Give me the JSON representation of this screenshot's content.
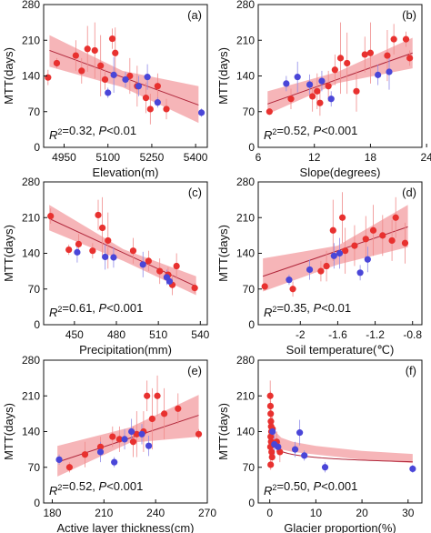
{
  "colors": {
    "red_points": "#e8312f",
    "blue_points": "#4a46d8",
    "band_fill": "#f4a3a6",
    "fit_line": "#b0263a",
    "err_red": "#f08a8a",
    "err_blue": "#8f8ae8"
  },
  "chart_data": [
    {
      "type": "scatter",
      "panel_label": "(a)",
      "xlabel": "Elevation(m)",
      "ylabel": "MTT(days)",
      "xlim": [
        4880,
        5440
      ],
      "ylim": [
        0,
        280
      ],
      "xticks": [
        4950,
        5100,
        5250,
        5400
      ],
      "yticks": [
        0,
        70,
        140,
        210,
        280
      ],
      "stat_text": "R²=0.32, P<0.01",
      "stat_r2": "0.32",
      "stat_p": "0.01",
      "stat_op": "<",
      "fit": {
        "type": "linear",
        "x": [
          4900,
          5410
        ],
        "y": [
          190,
          83
        ]
      },
      "band": {
        "x": [
          4900,
          5150,
          5410
        ],
        "upper": [
          220,
          150,
          120
        ],
        "lower": [
          158,
          118,
          48
        ]
      },
      "series": [
        {
          "color": "red",
          "points": [
            [
              4895,
              137
            ],
            [
              4925,
              165
            ],
            [
              4990,
              180
            ],
            [
              5010,
              150
            ],
            [
              5030,
              193
            ],
            [
              5055,
              190
            ],
            [
              5075,
              160
            ],
            [
              5090,
              133
            ],
            [
              5115,
              213
            ],
            [
              5125,
              185
            ],
            [
              5175,
              140
            ],
            [
              5200,
              120
            ],
            [
              5230,
              97
            ],
            [
              5245,
              75
            ],
            [
              5270,
              120
            ],
            [
              5300,
              75
            ]
          ],
          "err": [
            15,
            10,
            30,
            25,
            45,
            55,
            60,
            20,
            20,
            50,
            35,
            40,
            30,
            30,
            25,
            20
          ]
        },
        {
          "color": "blue",
          "points": [
            [
              5100,
              107
            ],
            [
              5120,
              142
            ],
            [
              5160,
              133
            ],
            [
              5205,
              120
            ],
            [
              5235,
              138
            ],
            [
              5270,
              88
            ],
            [
              5420,
              68
            ]
          ],
          "err": [
            10,
            35,
            15,
            20,
            25,
            10,
            8
          ]
        }
      ]
    },
    {
      "type": "scatter",
      "panel_label": "(b)",
      "xlabel": "Slope(degrees)",
      "ylabel": "MTT(days)",
      "xlim": [
        6,
        23.5
      ],
      "ylim": [
        0,
        280
      ],
      "xticks": [
        6,
        12,
        18,
        24
      ],
      "yticks": [
        0,
        70,
        140,
        210,
        280
      ],
      "stat_text": "R²=0.52, P<0.001",
      "stat_r2": "0.52",
      "stat_p": "0.001",
      "stat_op": "<",
      "fit": {
        "type": "linear",
        "x": [
          7,
          22.5
        ],
        "y": [
          85,
          185
        ]
      },
      "band": {
        "x": [
          7,
          14.5,
          22.5
        ],
        "upper": [
          110,
          148,
          215
        ],
        "lower": [
          65,
          126,
          155
        ]
      },
      "series": [
        {
          "color": "red",
          "points": [
            [
              7.2,
              70
            ],
            [
              9.5,
              95
            ],
            [
              11.8,
              100
            ],
            [
              12.3,
              110
            ],
            [
              12.6,
              87
            ],
            [
              13.5,
              120
            ],
            [
              14.2,
              152
            ],
            [
              14.8,
              175
            ],
            [
              15.5,
              165
            ],
            [
              16.5,
              110
            ],
            [
              17.4,
              182
            ],
            [
              18,
              185
            ],
            [
              19.8,
              180
            ],
            [
              20.5,
              212
            ],
            [
              21.8,
              212
            ],
            [
              22.2,
              175
            ]
          ],
          "err": [
            5,
            20,
            30,
            35,
            25,
            30,
            30,
            70,
            60,
            40,
            35,
            60,
            50,
            30,
            15,
            15
          ]
        },
        {
          "color": "blue",
          "points": [
            [
              9,
              125
            ],
            [
              10.2,
              138
            ],
            [
              11.5,
              123
            ],
            [
              12.8,
              130
            ],
            [
              13.8,
              95
            ],
            [
              18.8,
              142
            ],
            [
              20,
              148
            ]
          ],
          "err": [
            15,
            30,
            20,
            20,
            15,
            20,
            35
          ]
        }
      ]
    },
    {
      "type": "scatter",
      "panel_label": "(c)",
      "xlabel": "Precipitation(mm)",
      "ylabel": "MTT(days)",
      "xlim": [
        428,
        545
      ],
      "ylim": [
        0,
        280
      ],
      "xticks": [
        450,
        480,
        510,
        540
      ],
      "yticks": [
        0,
        70,
        140,
        210,
        280
      ],
      "stat_text": "R²=0.61, P<0.001",
      "stat_r2": "0.61",
      "stat_p": "0.001",
      "stat_op": "<",
      "fit": {
        "type": "linear",
        "x": [
          432,
          537
        ],
        "y": [
          208,
          75
        ]
      },
      "band": {
        "x": [
          432,
          485,
          537
        ],
        "upper": [
          235,
          148,
          95
        ],
        "lower": [
          185,
          125,
          58
        ]
      },
      "series": [
        {
          "color": "red",
          "points": [
            [
              433,
              213
            ],
            [
              446,
              147
            ],
            [
              453,
              158
            ],
            [
              463,
              145
            ],
            [
              467,
              215
            ],
            [
              470,
              190
            ],
            [
              474,
              165
            ],
            [
              492,
              145
            ],
            [
              503,
              125
            ],
            [
              511,
              105
            ],
            [
              517,
              98
            ],
            [
              523,
              115
            ],
            [
              520,
              78
            ],
            [
              536,
              72
            ]
          ],
          "err": [
            15,
            10,
            20,
            15,
            30,
            60,
            55,
            25,
            20,
            25,
            15,
            25,
            20,
            10
          ]
        },
        {
          "color": "blue",
          "points": [
            [
              452,
              142
            ],
            [
              472,
              133
            ],
            [
              478,
              132
            ],
            [
              499,
              118
            ],
            [
              516,
              93
            ],
            [
              518,
              85
            ]
          ],
          "err": [
            20,
            25,
            20,
            25,
            15,
            10
          ]
        }
      ]
    },
    {
      "type": "scatter",
      "panel_label": "(d)",
      "xlabel": "Soil temperature(℃)",
      "ylabel": "MTT(days)",
      "xlim": [
        -2.45,
        -0.7
      ],
      "ylim": [
        0,
        280
      ],
      "xticks": [
        -2.0,
        -1.6,
        -1.2,
        -0.8
      ],
      "yticks": [
        0,
        70,
        140,
        210,
        280
      ],
      "stat_text": "R²=0.35, P<0.01",
      "stat_r2": "0.35",
      "stat_p": "0.01",
      "stat_op": "<",
      "fit": {
        "type": "linear",
        "x": [
          -2.4,
          -0.85
        ],
        "y": [
          95,
          192
        ]
      },
      "band": {
        "x": [
          -2.4,
          -1.6,
          -0.85
        ],
        "upper": [
          130,
          155,
          235
        ],
        "lower": [
          65,
          118,
          152
        ]
      },
      "series": [
        {
          "color": "red",
          "points": [
            [
              -2.38,
              75
            ],
            [
              -2.08,
              70
            ],
            [
              -1.78,
              105
            ],
            [
              -1.72,
              115
            ],
            [
              -1.65,
              185
            ],
            [
              -1.55,
              210
            ],
            [
              -1.52,
              145
            ],
            [
              -1.42,
              155
            ],
            [
              -1.3,
              168
            ],
            [
              -1.22,
              185
            ],
            [
              -1.12,
              175
            ],
            [
              -1.02,
              165
            ],
            [
              -0.98,
              210
            ],
            [
              -0.88,
              160
            ]
          ],
          "err": [
            8,
            15,
            20,
            30,
            60,
            50,
            45,
            40,
            45,
            50,
            40,
            40,
            40,
            40
          ]
        },
        {
          "color": "blue",
          "points": [
            [
              -2.12,
              88
            ],
            [
              -1.9,
              108
            ],
            [
              -1.64,
              135
            ],
            [
              -1.58,
              140
            ],
            [
              -1.36,
              102
            ],
            [
              -1.28,
              128
            ]
          ],
          "err": [
            10,
            20,
            25,
            30,
            15,
            25
          ]
        }
      ]
    },
    {
      "type": "scatter",
      "panel_label": "(e)",
      "xlabel": "Active layer thickness(cm)",
      "ylabel": "MTT(days)",
      "xlim": [
        175,
        270
      ],
      "ylim": [
        0,
        280
      ],
      "xticks": [
        180,
        210,
        240,
        270
      ],
      "yticks": [
        0,
        70,
        140,
        210,
        280
      ],
      "stat_text": "R²=0.52, P<0.001",
      "stat_r2": "0.52",
      "stat_p": "0.001",
      "stat_op": "<",
      "fit": {
        "type": "linear",
        "x": [
          183,
          265
        ],
        "y": [
          80,
          172
        ]
      },
      "band": {
        "x": [
          183,
          225,
          265
        ],
        "upper": [
          112,
          148,
          212
        ],
        "lower": [
          52,
          118,
          130
        ]
      },
      "series": [
        {
          "color": "red",
          "points": [
            [
              190,
              70
            ],
            [
              199,
              95
            ],
            [
              208,
              110
            ],
            [
              215,
              130
            ],
            [
              219,
              125
            ],
            [
              227,
              120
            ],
            [
              229,
              135
            ],
            [
              233,
              140
            ],
            [
              235,
              210
            ],
            [
              238,
              165
            ],
            [
              241,
              210
            ],
            [
              245,
              175
            ],
            [
              253,
              185
            ],
            [
              265,
              135
            ]
          ],
          "err": [
            10,
            25,
            20,
            20,
            25,
            30,
            45,
            40,
            30,
            60,
            40,
            50,
            30,
            10
          ]
        },
        {
          "color": "blue",
          "points": [
            [
              184,
              85
            ],
            [
              208,
              100
            ],
            [
              216,
              80
            ],
            [
              222,
              125
            ],
            [
              226,
              140
            ],
            [
              232,
              135
            ],
            [
              236,
              112
            ]
          ],
          "err": [
            10,
            20,
            10,
            20,
            25,
            20,
            20
          ]
        }
      ]
    },
    {
      "type": "scatter",
      "panel_label": "(f)",
      "xlabel": "Glacier proportion(%)",
      "ylabel": "MTT(days)",
      "xlim": [
        -2.5,
        33
      ],
      "ylim": [
        0,
        280
      ],
      "xticks": [
        0,
        10,
        20,
        30
      ],
      "yticks": [
        0,
        70,
        140,
        210,
        280
      ],
      "stat_text": "R²=0.50, P<0.001",
      "stat_r2": "0.50",
      "stat_p": "0.001",
      "stat_op": "<",
      "fit": {
        "type": "power",
        "x_start": 0.25,
        "x_end": 31,
        "a": 110,
        "b": -0.09
      },
      "band": {
        "x": [
          0.25,
          0.6,
          1.2,
          2.5,
          5,
          10,
          20,
          31
        ],
        "upper": [
          185,
          160,
          140,
          128,
          120,
          112,
          102,
          96
        ],
        "lower": [
          120,
          118,
          112,
          105,
          100,
          95,
          85,
          78
        ]
      },
      "series": [
        {
          "color": "red",
          "points": [
            [
              0.1,
              210
            ],
            [
              0.15,
              190
            ],
            [
              0.2,
              175
            ],
            [
              0.25,
              160
            ],
            [
              0.3,
              150
            ],
            [
              0.35,
              140
            ],
            [
              0.2,
              130
            ],
            [
              0.3,
              120
            ],
            [
              0.15,
              110
            ],
            [
              0.4,
              100
            ],
            [
              0.5,
              90
            ],
            [
              0.2,
              75
            ],
            [
              0.6,
              145
            ],
            [
              1.5,
              120
            ],
            [
              2.2,
              100
            ]
          ],
          "err": [
            30,
            30,
            25,
            35,
            30,
            25,
            20,
            20,
            15,
            15,
            15,
            10,
            30,
            20,
            20
          ]
        },
        {
          "color": "blue",
          "points": [
            [
              0.6,
              140
            ],
            [
              1,
              115
            ],
            [
              1.8,
              110
            ],
            [
              5.5,
              105
            ],
            [
              6.5,
              138
            ],
            [
              7.5,
              93
            ],
            [
              12,
              70
            ],
            [
              31,
              67
            ]
          ],
          "err": [
            20,
            20,
            15,
            15,
            25,
            10,
            10,
            8
          ]
        }
      ]
    }
  ]
}
